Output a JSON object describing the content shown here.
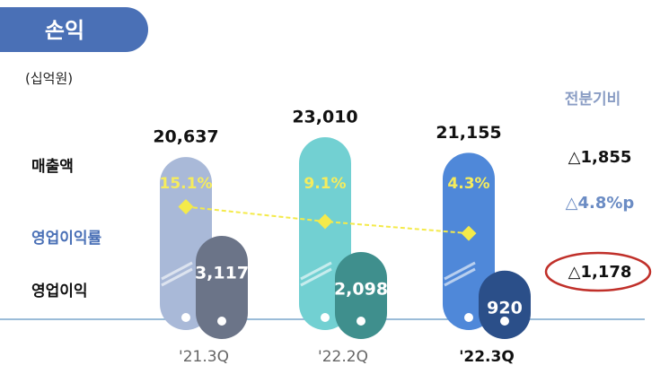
{
  "chart_data": {
    "type": "bar",
    "title": "손익",
    "unit": "(십억원)",
    "categories": [
      "'21.3Q",
      "'22.2Q",
      "'22.3Q"
    ],
    "series": [
      {
        "name": "매출액",
        "colors": [
          "#a9b9d8",
          "#72d0d2",
          "#4f88d9"
        ],
        "values": [
          20637,
          23010,
          21155
        ],
        "value_labels": [
          "20,637",
          "23,010",
          "21,155"
        ]
      },
      {
        "name": "영업이익률",
        "type": "line",
        "color": "#f4ea4a",
        "values": [
          15.1,
          9.1,
          4.3
        ],
        "value_labels": [
          "15.1%",
          "9.1%",
          "4.3%"
        ]
      },
      {
        "name": "영업이익",
        "colors": [
          "#6b7488",
          "#3f8f8d",
          "#2b4f89"
        ],
        "values": [
          3117,
          2098,
          920
        ],
        "value_labels": [
          "3,117",
          "2,098",
          "920"
        ]
      }
    ],
    "comparison": {
      "title": "전분기비",
      "values": [
        "△1,855",
        "△4.8%p",
        "△1,178"
      ]
    }
  }
}
